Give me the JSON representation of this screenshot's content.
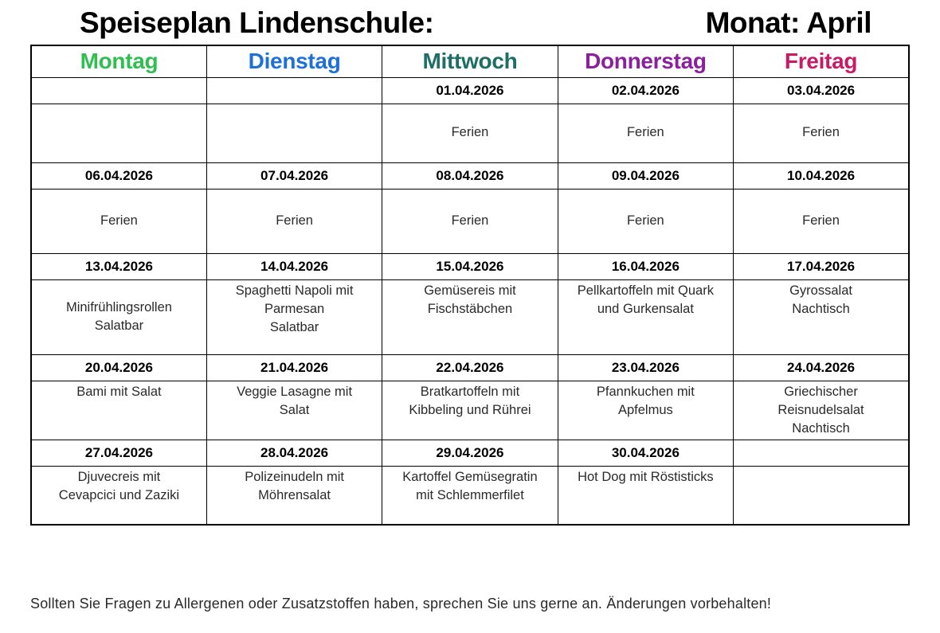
{
  "page": {
    "title_left": "Speiseplan Lindenschule:",
    "title_right": "Monat: April",
    "footer": "Sollten Sie Fragen zu Allergenen oder Zusatzstoffen haben, sprechen Sie uns gerne an. Änderungen vorbehalten!"
  },
  "colors": {
    "montag": "#2fbf50",
    "dienstag": "#1e6fd6",
    "mittwoch": "#1d6f66",
    "donnerstag": "#8b1f9e",
    "freitag": "#c81a66",
    "title_text": "#000000",
    "body_text": "#2a2a2a",
    "border": "#000000"
  },
  "table": {
    "headers": [
      "Montag",
      "Dienstag",
      "Mittwoch",
      "Donnerstag",
      "Freitag"
    ],
    "week1": {
      "dates": [
        "",
        "",
        "01.04.2026",
        "02.04.2026",
        "03.04.2026"
      ],
      "meals": [
        "",
        "",
        "Ferien",
        "Ferien",
        "Ferien"
      ]
    },
    "week2": {
      "dates": [
        "06.04.2026",
        "07.04.2026",
        "08.04.2026",
        "09.04.2026",
        "10.04.2026"
      ],
      "meals": [
        "Ferien",
        "Ferien",
        "Ferien",
        "Ferien",
        "Ferien"
      ]
    },
    "week3": {
      "dates": [
        "13.04.2026",
        "14.04.2026",
        "15.04.2026",
        "16.04.2026",
        "17.04.2026"
      ],
      "meals": [
        "Minifrühlingsrollen\nSalatbar",
        "Spaghetti Napoli mit\nParmesan\nSalatbar",
        "Gemüsereis mit\nFischstäbchen",
        "Pellkartoffeln mit Quark\nund Gurkensalat",
        "Gyrossalat\nNachtisch"
      ]
    },
    "week4": {
      "dates": [
        "20.04.2026",
        "21.04.2026",
        "22.04.2026",
        "23.04.2026",
        "24.04.2026"
      ],
      "meals": [
        "Bami mit Salat",
        "Veggie Lasagne mit\nSalat",
        "Bratkartoffeln mit\nKibbeling und Rührei",
        "Pfannkuchen mit\nApfelmus",
        "Griechischer\nReisnudelsalat\nNachtisch"
      ]
    },
    "week5": {
      "dates": [
        "27.04.2026",
        "28.04.2026",
        "29.04.2026",
        "30.04.2026",
        ""
      ],
      "meals": [
        "Djuvecreis mit\nCevapcici und Zaziki",
        "Polizeinudeln mit\nMöhrensalat",
        "Kartoffel Gemüsegratin\nmit Schlemmerfilet",
        "Hot Dog mit Röstisticks",
        ""
      ]
    }
  }
}
